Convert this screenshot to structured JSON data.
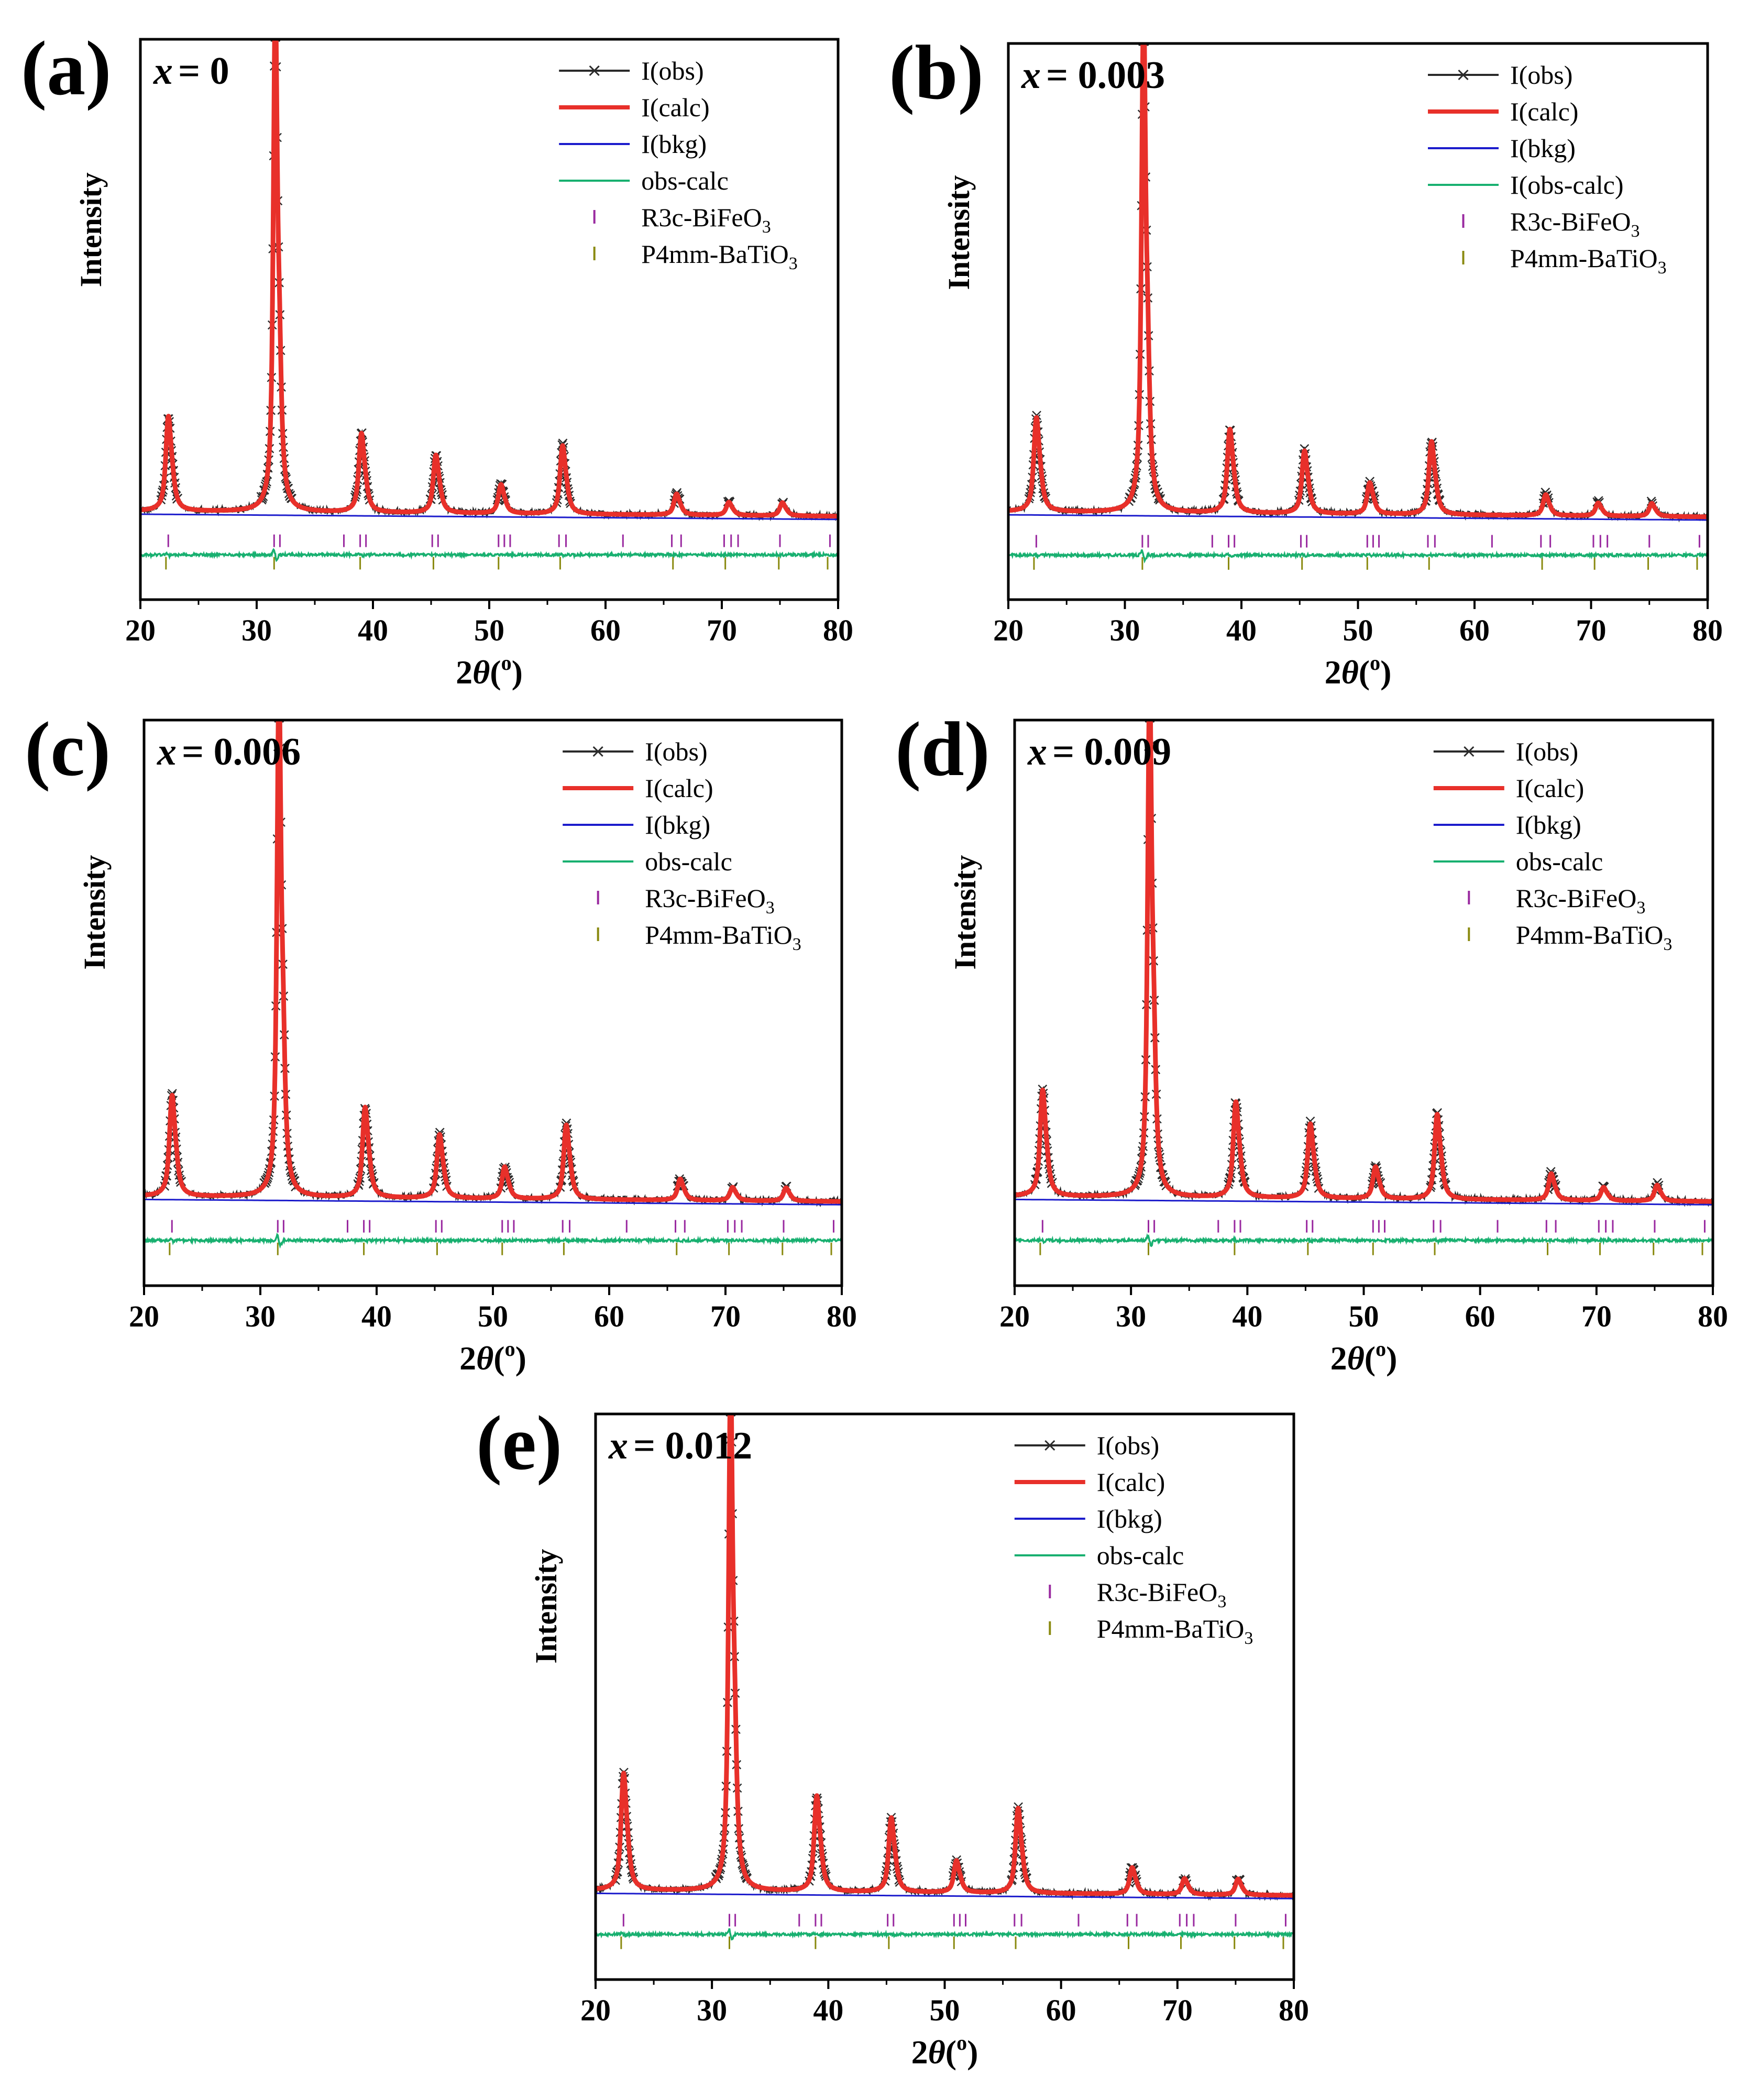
{
  "figure_type": "Rietveld refinement XRD patterns",
  "colors": {
    "obs": "#2a2a2a",
    "calc": "#e8302a",
    "bkg": "#1c1ccc",
    "diff": "#18b070",
    "tick_r3c": "#9a2aa0",
    "tick_p4mm": "#8a8a10",
    "axis": "#000000"
  },
  "legend_labels": {
    "obs": "I(obs)",
    "calc": "I(calc)",
    "bkg": "I(bkg)",
    "phase1": {
      "base": "R3c-BiFeO",
      "sub": "3"
    },
    "phase2": {
      "base": "P4mm-BaTiO",
      "sub": "3"
    }
  },
  "chart_data": [
    {
      "type": "line",
      "panel": "(a)",
      "label_prefix": "x",
      "label_value": "= 0",
      "diff_label": "obs-calc",
      "xlabel_main": "2",
      "xlabel_theta": "θ",
      "xlabel_unit": "(",
      "xlabel_sup": "o",
      "xlabel_close": ")",
      "ylabel": "Intensity",
      "xlim": [
        20,
        80
      ],
      "xticks": [
        "20",
        "30",
        "40",
        "50",
        "60",
        "70",
        "80"
      ],
      "peaks": [
        {
          "pos": 22.4,
          "rel": 0.18
        },
        {
          "pos": 31.6,
          "rel": 1.0
        },
        {
          "pos": 39.0,
          "rel": 0.15
        },
        {
          "pos": 45.4,
          "rel": 0.11
        },
        {
          "pos": 51.0,
          "rel": 0.055
        },
        {
          "pos": 56.3,
          "rel": 0.13
        },
        {
          "pos": 66.1,
          "rel": 0.04
        },
        {
          "pos": 70.6,
          "rel": 0.025
        },
        {
          "pos": 75.2,
          "rel": 0.025
        }
      ],
      "ticks_r3c": [
        22.4,
        31.5,
        32.0,
        37.5,
        38.9,
        39.4,
        45.1,
        45.6,
        50.8,
        51.3,
        51.8,
        56.0,
        56.6,
        61.5,
        65.7,
        66.5,
        70.2,
        70.8,
        71.4,
        75.0,
        79.3
      ],
      "ticks_p4mm": [
        22.2,
        31.5,
        38.9,
        45.2,
        50.8,
        56.1,
        65.8,
        70.3,
        74.9,
        79.1
      ]
    },
    {
      "type": "line",
      "panel": "(b)",
      "label_prefix": "x",
      "label_value": "= 0.003",
      "diff_label": "I(obs-calc)",
      "xlabel_main": "2",
      "xlabel_theta": "θ",
      "xlabel_unit": "(",
      "xlabel_sup": "o",
      "xlabel_close": ")",
      "ylabel": "Intensity",
      "xlim": [
        20,
        80
      ],
      "xticks": [
        "20",
        "30",
        "40",
        "50",
        "60",
        "70",
        "80"
      ],
      "peaks": [
        {
          "pos": 22.4,
          "rel": 0.18
        },
        {
          "pos": 31.6,
          "rel": 1.0
        },
        {
          "pos": 39.0,
          "rel": 0.16
        },
        {
          "pos": 45.4,
          "rel": 0.12
        },
        {
          "pos": 51.0,
          "rel": 0.06
        },
        {
          "pos": 56.3,
          "rel": 0.14
        },
        {
          "pos": 66.1,
          "rel": 0.04
        },
        {
          "pos": 70.6,
          "rel": 0.025
        },
        {
          "pos": 75.2,
          "rel": 0.025
        }
      ],
      "ticks_r3c": [
        22.4,
        31.5,
        32.0,
        37.5,
        38.9,
        39.4,
        45.1,
        45.6,
        50.8,
        51.3,
        51.8,
        56.0,
        56.6,
        61.5,
        65.7,
        66.5,
        70.2,
        70.8,
        71.4,
        75.0,
        79.3
      ],
      "ticks_p4mm": [
        22.2,
        31.5,
        38.9,
        45.2,
        50.8,
        56.1,
        65.8,
        70.3,
        74.9,
        79.1
      ]
    },
    {
      "type": "line",
      "panel": "(c)",
      "label_prefix": "x",
      "label_value": "= 0.006",
      "diff_label": "obs-calc",
      "xlabel_main": "2",
      "xlabel_theta": "θ",
      "xlabel_unit": "(",
      "xlabel_sup": "o",
      "xlabel_close": ")",
      "ylabel": "Intensity",
      "xlim": [
        20,
        80
      ],
      "xticks": [
        "20",
        "30",
        "40",
        "50",
        "60",
        "70",
        "80"
      ],
      "peaks": [
        {
          "pos": 22.4,
          "rel": 0.19
        },
        {
          "pos": 31.6,
          "rel": 1.0
        },
        {
          "pos": 39.0,
          "rel": 0.17
        },
        {
          "pos": 45.4,
          "rel": 0.12
        },
        {
          "pos": 51.0,
          "rel": 0.06
        },
        {
          "pos": 56.3,
          "rel": 0.14
        },
        {
          "pos": 66.1,
          "rel": 0.04
        },
        {
          "pos": 70.6,
          "rel": 0.025
        },
        {
          "pos": 75.2,
          "rel": 0.025
        }
      ],
      "ticks_r3c": [
        22.4,
        31.5,
        32.0,
        37.5,
        38.9,
        39.4,
        45.1,
        45.6,
        50.8,
        51.3,
        51.8,
        56.0,
        56.6,
        61.5,
        65.7,
        66.5,
        70.2,
        70.8,
        71.4,
        75.0,
        79.3
      ],
      "ticks_p4mm": [
        22.2,
        31.5,
        38.9,
        45.2,
        50.8,
        56.1,
        65.8,
        70.3,
        74.9,
        79.1
      ]
    },
    {
      "type": "line",
      "panel": "(d)",
      "label_prefix": "x",
      "label_value": "= 0.009",
      "diff_label": "obs-calc",
      "xlabel_main": "2",
      "xlabel_theta": "θ",
      "xlabel_unit": "(",
      "xlabel_sup": "o",
      "xlabel_close": ")",
      "ylabel": "Intensity",
      "xlim": [
        20,
        80
      ],
      "xticks": [
        "20",
        "30",
        "40",
        "50",
        "60",
        "70",
        "80"
      ],
      "peaks": [
        {
          "pos": 22.4,
          "rel": 0.2
        },
        {
          "pos": 31.6,
          "rel": 1.0
        },
        {
          "pos": 39.0,
          "rel": 0.18
        },
        {
          "pos": 45.4,
          "rel": 0.14
        },
        {
          "pos": 51.0,
          "rel": 0.06
        },
        {
          "pos": 56.3,
          "rel": 0.16
        },
        {
          "pos": 66.1,
          "rel": 0.05
        },
        {
          "pos": 70.6,
          "rel": 0.025
        },
        {
          "pos": 75.2,
          "rel": 0.03
        }
      ],
      "ticks_r3c": [
        22.4,
        31.5,
        32.0,
        37.5,
        38.9,
        39.4,
        45.1,
        45.6,
        50.8,
        51.3,
        51.8,
        56.0,
        56.6,
        61.5,
        65.7,
        66.5,
        70.2,
        70.8,
        71.4,
        75.0,
        79.3
      ],
      "ticks_p4mm": [
        22.2,
        31.5,
        38.9,
        45.2,
        50.8,
        56.1,
        65.8,
        70.3,
        74.9,
        79.1
      ]
    },
    {
      "type": "line",
      "panel": "(e)",
      "label_prefix": "x",
      "label_value": "= 0.012",
      "diff_label": "obs-calc",
      "xlabel_main": "2",
      "xlabel_theta": "θ",
      "xlabel_unit": "(",
      "xlabel_sup": "o",
      "xlabel_close": ")",
      "ylabel": "Intensity",
      "xlim": [
        20,
        80
      ],
      "xticks": [
        "20",
        "30",
        "40",
        "50",
        "60",
        "70",
        "80"
      ],
      "peaks": [
        {
          "pos": 22.4,
          "rel": 0.22
        },
        {
          "pos": 31.6,
          "rel": 1.0
        },
        {
          "pos": 39.0,
          "rel": 0.18
        },
        {
          "pos": 45.4,
          "rel": 0.14
        },
        {
          "pos": 51.0,
          "rel": 0.06
        },
        {
          "pos": 56.3,
          "rel": 0.16
        },
        {
          "pos": 66.1,
          "rel": 0.05
        },
        {
          "pos": 70.6,
          "rel": 0.03
        },
        {
          "pos": 75.2,
          "rel": 0.03
        }
      ],
      "ticks_r3c": [
        22.4,
        31.5,
        32.0,
        37.5,
        38.9,
        39.4,
        45.1,
        45.6,
        50.8,
        51.3,
        51.8,
        56.0,
        56.6,
        61.5,
        65.7,
        66.5,
        70.2,
        70.8,
        71.4,
        75.0,
        79.3
      ],
      "ticks_p4mm": [
        22.2,
        31.5,
        38.9,
        45.2,
        50.8,
        56.1,
        65.8,
        70.3,
        74.9,
        79.1
      ]
    }
  ]
}
